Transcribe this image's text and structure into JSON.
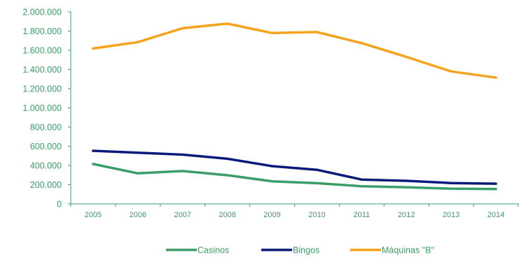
{
  "chart_data": {
    "type": "line",
    "title": "",
    "xlabel": "",
    "ylabel": "",
    "categories": [
      "2005",
      "2006",
      "2007",
      "2008",
      "2009",
      "2010",
      "2011",
      "2012",
      "2013",
      "2014"
    ],
    "ylim": [
      0,
      2000000
    ],
    "y_ticks": [
      0,
      200000,
      400000,
      600000,
      800000,
      1000000,
      1200000,
      1400000,
      1600000,
      1800000,
      2000000
    ],
    "y_tick_labels": [
      "0",
      "200.000",
      "400.000",
      "600.000",
      "800.000",
      "1.000.000",
      "1.200.000",
      "1.400.000",
      "1.600.000",
      "1.800.000",
      "2.000.000"
    ],
    "grid": false,
    "legend_position": "bottom",
    "series": [
      {
        "name": "Casinos",
        "color": "#3a9e67",
        "values": [
          415000,
          318000,
          342000,
          298000,
          235000,
          215000,
          183000,
          173000,
          158000,
          155000
        ]
      },
      {
        "name": "Bingos",
        "color": "#0a1a7a",
        "values": [
          553000,
          532000,
          513000,
          470000,
          393000,
          355000,
          253000,
          240000,
          217000,
          210000
        ]
      },
      {
        "name": "Máquinas \"B\"",
        "color": "#f5a21c",
        "values": [
          1618000,
          1685000,
          1830000,
          1877000,
          1780000,
          1790000,
          1675000,
          1530000,
          1380000,
          1315000
        ]
      }
    ]
  },
  "colors": {
    "axis": "#3a9e67",
    "text": "#3a9e67"
  }
}
